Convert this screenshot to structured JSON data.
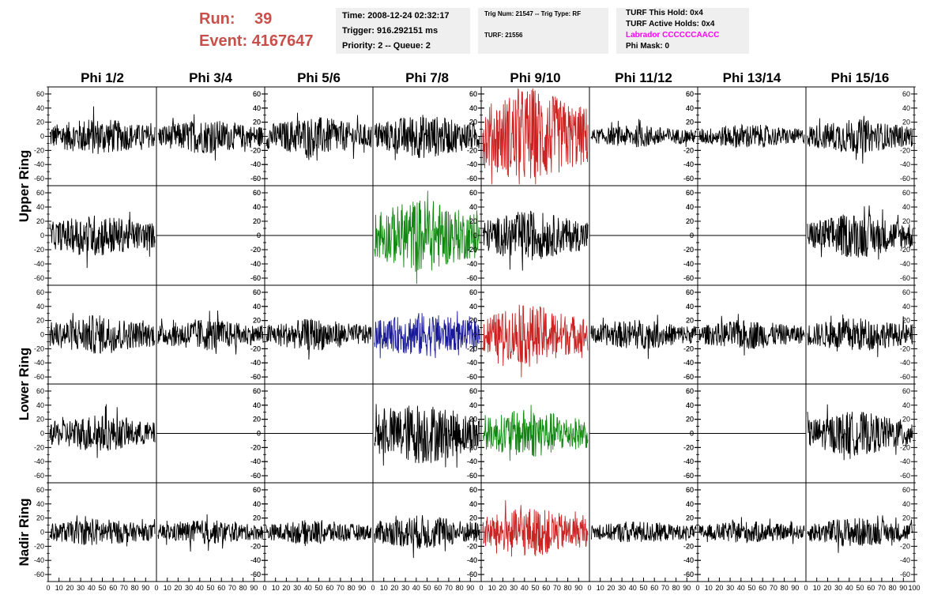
{
  "header": {
    "run_label": "Run:",
    "run_value": "39",
    "event_label": "Event:",
    "event_value": "4167647",
    "time": "Time: 2008-12-24 02:32:17",
    "trigger": "Trigger: 916.292151 ms",
    "priority": "Priority: 2 -- Queue: 2",
    "trig_num": "Trig Num: 21547 -- Trig Type: RF",
    "turf": "TURF: 21556",
    "turf_this_hold": "TURF This Hold: 0x4",
    "turf_active_holds": "TURF Active Holds: 0x4",
    "labrador": "Labrador CCCCCCAACC",
    "phi_mask": "Phi Mask: 0",
    "colors": {
      "run": "#c8504b",
      "labrador": "#ff00ff",
      "box": "#efefef"
    }
  },
  "chart_data": {
    "type": "line",
    "columns": [
      "Phi 1/2",
      "Phi 3/4",
      "Phi 5/6",
      "Phi 7/8",
      "Phi 9/10",
      "Phi 11/12",
      "Phi 13/14",
      "Phi 15/16"
    ],
    "ring_labels": [
      "Upper Ring",
      "Lower Ring",
      "Nadir Ring"
    ],
    "x_range": [
      0,
      100
    ],
    "x_ticks": [
      "0",
      "10",
      "20",
      "30",
      "40",
      "50",
      "60",
      "70",
      "80",
      "90",
      "100"
    ],
    "y_range": [
      -70,
      70
    ],
    "y_ticks": [
      -60,
      -40,
      -20,
      0,
      20,
      40,
      60
    ],
    "colors": {
      "black": "#000000",
      "red": "#cc2222",
      "green": "#118811",
      "blue": "#1a1a99"
    },
    "panels": [
      [
        "black",
        "black",
        "black",
        "black",
        "red",
        "black",
        "black",
        "black"
      ],
      [
        "black",
        "flat",
        "flat",
        "green",
        "black",
        "flat",
        "flat",
        "black"
      ],
      [
        "black",
        "black",
        "black",
        "blue",
        "red",
        "black",
        "black",
        "black"
      ],
      [
        "black",
        "flat",
        "flat",
        "black",
        "green",
        "flat",
        "flat",
        "black"
      ],
      [
        "black",
        "black",
        "black",
        "black",
        "red",
        "black",
        "black",
        "black"
      ]
    ],
    "amplitudes": [
      [
        15,
        14,
        16,
        18,
        40,
        9,
        10,
        14
      ],
      [
        17,
        0,
        0,
        30,
        20,
        0,
        0,
        18
      ],
      [
        16,
        13,
        13,
        18,
        24,
        12,
        12,
        14
      ],
      [
        15,
        0,
        0,
        25,
        20,
        0,
        0,
        18
      ],
      [
        11,
        10,
        10,
        14,
        20,
        9,
        9,
        12
      ]
    ]
  }
}
